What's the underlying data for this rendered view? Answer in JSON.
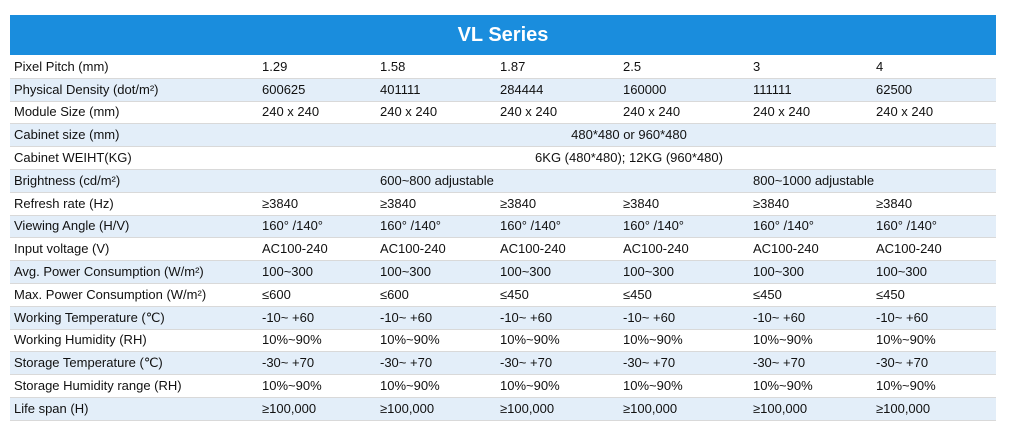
{
  "title": "VL Series",
  "rows": [
    {
      "label": "Pixel Pitch (mm)",
      "cells": [
        "1.29",
        "1.58",
        "1.87",
        "2.5",
        "3",
        "4"
      ]
    },
    {
      "label": "Physical Density (dot/m²)",
      "cells": [
        "600625",
        "401111",
        "284444",
        "160000",
        "111111",
        "62500"
      ]
    },
    {
      "label": "Module Size (mm)",
      "cells": [
        "240 x 240",
        "240 x 240",
        "240 x 240",
        "240 x 240",
        "240 x 240",
        "240 x 240"
      ]
    },
    {
      "label": "Cabinet size (mm)",
      "span_value": "480*480 or 960*480"
    },
    {
      "label": "Cabinet WEIHT(KG)",
      "span_value": "6KG (480*480); 12KG (960*480)"
    },
    {
      "label": "Brightness (cd/m²)",
      "brightness_a": "600~800 adjustable",
      "brightness_b": "800~1000 adjustable"
    },
    {
      "label": "Refresh  rate (Hz)",
      "cells": [
        "≥3840",
        "≥3840",
        "≥3840",
        "≥3840",
        "≥3840",
        "≥3840"
      ]
    },
    {
      "label": "Viewing Angle (H/V)",
      "cells": [
        "160° /140°",
        "160° /140°",
        "160° /140°",
        "160° /140°",
        "160° /140°",
        "160° /140°"
      ]
    },
    {
      "label": "Input voltage (V)",
      "cells": [
        "AC100-240",
        "AC100-240",
        "AC100-240",
        "AC100-240",
        "AC100-240",
        "AC100-240"
      ]
    },
    {
      "label": "Avg. Power Consumption (W/m²)",
      "cells": [
        "100~300",
        "100~300",
        "100~300",
        "100~300",
        "100~300",
        "100~300"
      ]
    },
    {
      "label": "Max. Power Consumption (W/m²)",
      "cells": [
        "≤600",
        "≤600",
        "≤450",
        "≤450",
        "≤450",
        "≤450"
      ]
    },
    {
      "label": "Working Temperature (℃)",
      "cells": [
        "-10~ +60",
        "-10~ +60",
        "-10~ +60",
        "-10~ +60",
        "-10~ +60",
        "-10~ +60"
      ]
    },
    {
      "label": "Working  Humidity (RH)",
      "cells": [
        "10%~90%",
        "10%~90%",
        "10%~90%",
        "10%~90%",
        "10%~90%",
        "10%~90%"
      ]
    },
    {
      "label": "Storage  Temperature (℃)",
      "cells": [
        "-30~ +70",
        "-30~ +70",
        "-30~ +70",
        "-30~ +70",
        "-30~ +70",
        "-30~ +70"
      ]
    },
    {
      "label": "Storage Humidity range (RH)",
      "cells": [
        "10%~90%",
        "10%~90%",
        "10%~90%",
        "10%~90%",
        "10%~90%",
        "10%~90%"
      ]
    },
    {
      "label": "Life span (H)",
      "cells": [
        "≥100,000",
        "≥100,000",
        "≥100,000",
        "≥100,000",
        "≥100,000",
        "≥100,000"
      ]
    }
  ]
}
